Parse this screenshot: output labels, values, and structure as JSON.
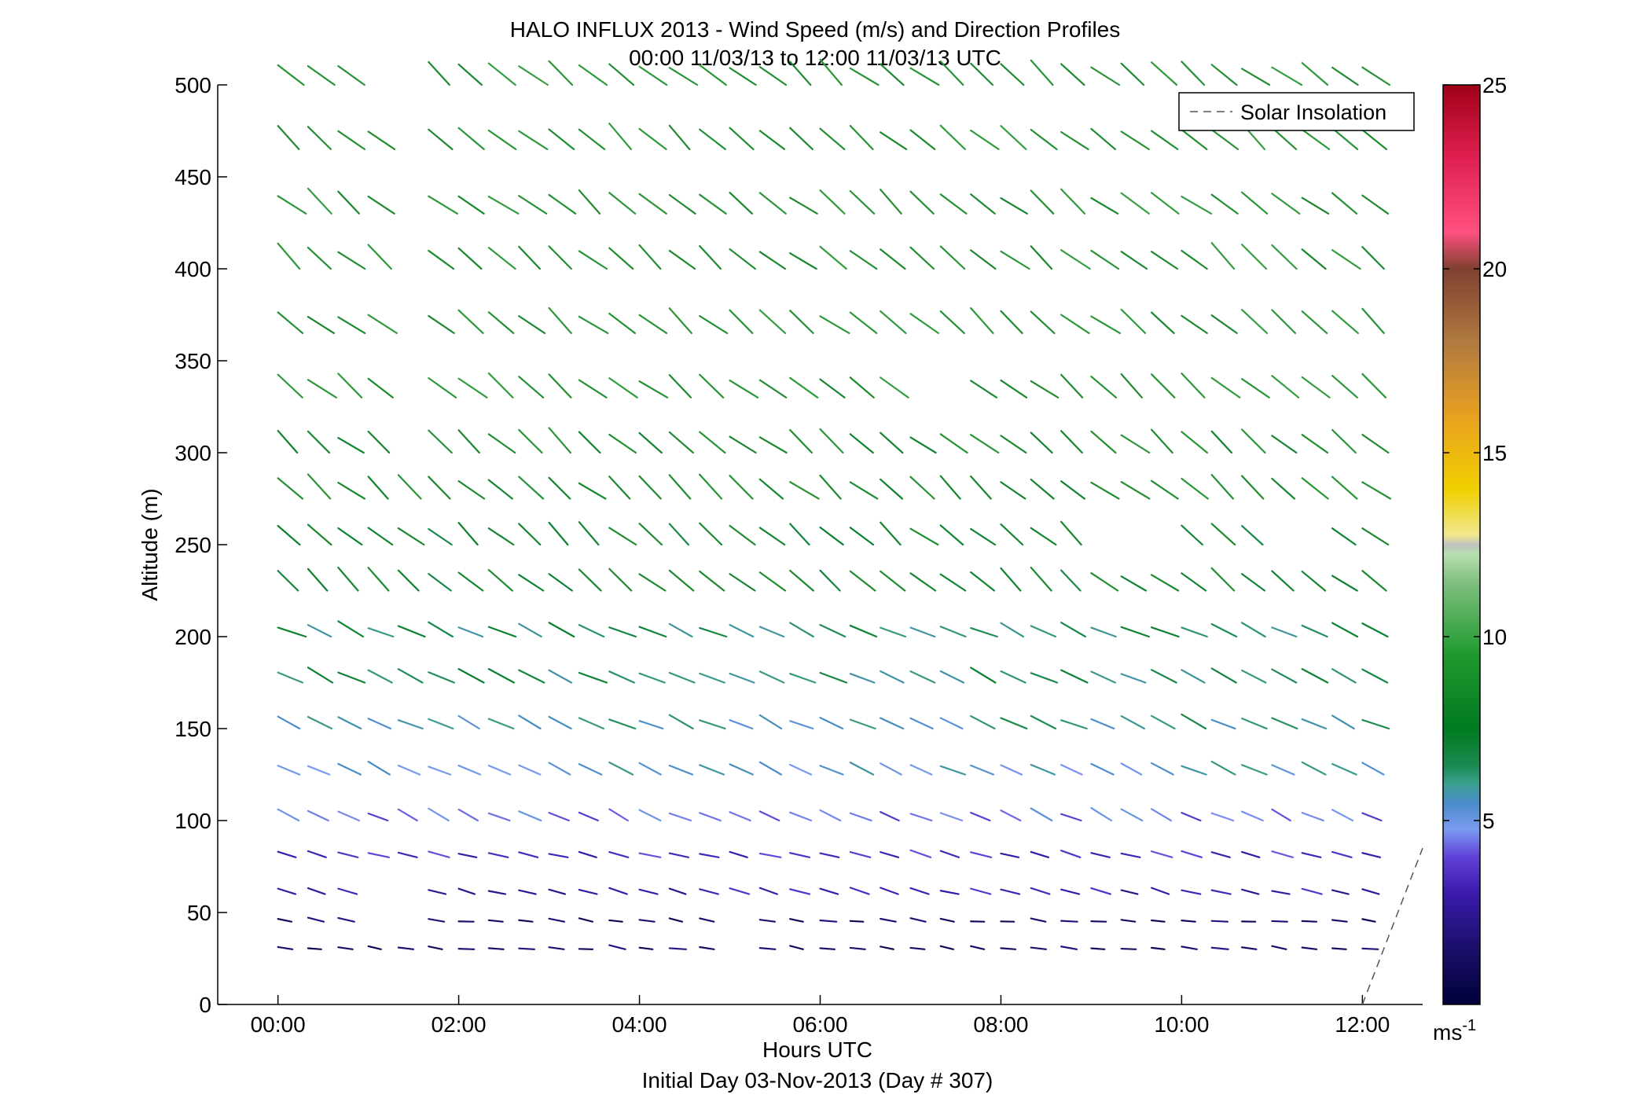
{
  "title_line1": "HALO INFLUX 2013 - Wind Speed (m/s) and Direction Profiles",
  "title_line2": "00:00 11/03/13 to 12:00 11/03/13  UTC",
  "colorbar": {
    "ticks": [
      "5",
      "10",
      "15",
      "20",
      "25"
    ],
    "unit": "ms",
    "unit_sup": "-1"
  },
  "chart_data": {
    "type": "vector",
    "title": "HALO INFLUX 2013 - Wind Speed (m/s) and Direction Profiles",
    "subtitle": "00:00 11/03/13 to 12:00 11/03/13  UTC",
    "xlabel": "Hours UTC",
    "xlabel2": "Initial Day 03-Nov-2013 (Day # 307)",
    "ylabel": "Altitude (m)",
    "xlim": [
      "-00:40",
      "12:40"
    ],
    "ylim": [
      0,
      500
    ],
    "xticks": [
      "00:00",
      "02:00",
      "04:00",
      "06:00",
      "08:00",
      "10:00",
      "12:00"
    ],
    "yticks": [
      "0",
      "50",
      "100",
      "150",
      "200",
      "250",
      "300",
      "350",
      "400",
      "450",
      "500"
    ],
    "legend": {
      "entries": [
        "Solar Insolation"
      ],
      "position": "top-right"
    },
    "colorbar_range": [
      0,
      25
    ],
    "speed_units": "m/s",
    "times_hours": [
      0,
      0.333,
      0.667,
      1.0,
      1.333,
      1.667,
      2.0,
      2.333,
      2.667,
      3.0,
      3.333,
      3.667,
      4.0,
      4.333,
      4.667,
      5.0,
      5.333,
      5.667,
      6.0,
      6.333,
      6.667,
      7.0,
      7.333,
      7.667,
      8.0,
      8.333,
      8.667,
      9.0,
      9.333,
      9.667,
      10.0,
      10.333,
      10.667,
      11.0,
      11.333,
      11.667,
      12.0
    ],
    "altitudes_m": [
      30,
      45,
      60,
      80,
      100,
      125,
      150,
      175,
      200,
      225,
      250,
      275,
      300,
      330,
      365,
      400,
      430,
      465,
      500
    ],
    "speed_by_altitude_m_s": [
      1.5,
      1.5,
      3.0,
      3.5,
      4.5,
      5.5,
      6.0,
      6.5,
      6.5,
      7.5,
      7.5,
      8.0,
      8.0,
      8.5,
      8.5,
      8.5,
      8.5,
      8.5,
      8.5
    ],
    "dominant_direction": "north-west",
    "missing_profiles": [
      "01:20-01:40 above 300 m",
      "05:00-06:00 below 60 m",
      "06:40-07:20 at 350 m",
      "08:40-10:00 at 250 m"
    ],
    "solar_insolation_line": {
      "from": [
        "12:00",
        0
      ],
      "to": [
        "12:40",
        85
      ]
    }
  }
}
